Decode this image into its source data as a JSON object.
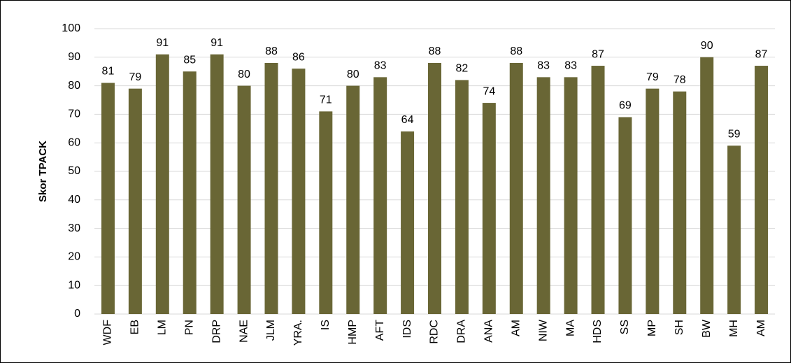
{
  "chart_data": {
    "type": "bar",
    "y_axis_label": "Skor TPACK",
    "categories": [
      "WDF",
      "EB",
      "LM",
      "PN",
      "DRP",
      "NAE",
      "JLM",
      "YRA.",
      "IS",
      "HMP",
      "AFT",
      "IDS",
      "RDC",
      "DRA",
      "ANA",
      "AM",
      "NIW",
      "MA",
      "HDS",
      "SS",
      "MP",
      "SH",
      "BW",
      "MH",
      "AM"
    ],
    "values": [
      81,
      79,
      91,
      85,
      91,
      80,
      88,
      86,
      71,
      80,
      83,
      64,
      88,
      82,
      74,
      88,
      83,
      83,
      87,
      69,
      79,
      78,
      90,
      59,
      87
    ],
    "color": "#696635",
    "ylim": [
      0,
      100
    ],
    "yticks": [
      0,
      10,
      20,
      30,
      40,
      50,
      60,
      70,
      80,
      90,
      100
    ],
    "grid": true
  }
}
